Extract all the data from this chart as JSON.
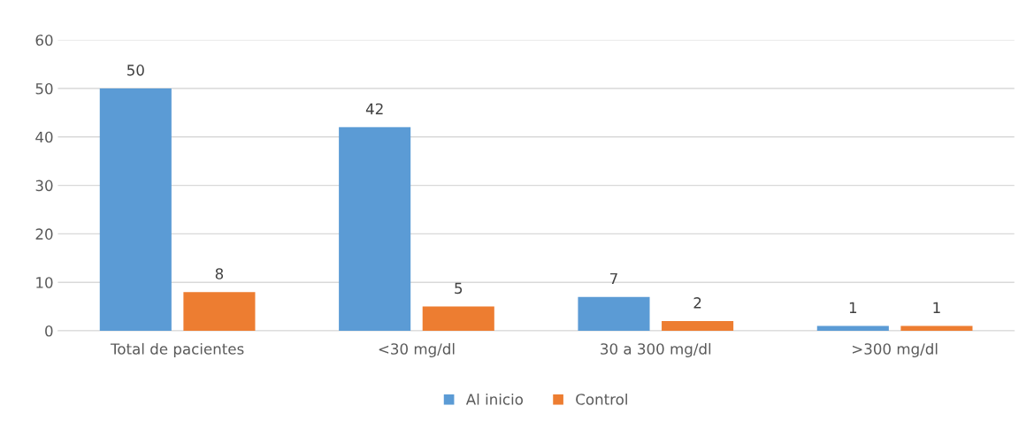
{
  "chart_data": {
    "type": "bar",
    "categories": [
      "Total de pacientes",
      "<30 mg/dl",
      "30 a 300 mg/dl",
      ">300 mg/dl"
    ],
    "series": [
      {
        "name": "Al inicio",
        "color": "#5b9bd5",
        "values": [
          50,
          42,
          7,
          1
        ]
      },
      {
        "name": "Control",
        "color": "#ed7d31",
        "values": [
          8,
          5,
          2,
          1
        ]
      }
    ],
    "ylim": [
      0,
      60
    ],
    "yticks": [
      0,
      10,
      20,
      30,
      40,
      50,
      60
    ],
    "grid": "y",
    "legend": "bottom",
    "data_labels": true
  }
}
